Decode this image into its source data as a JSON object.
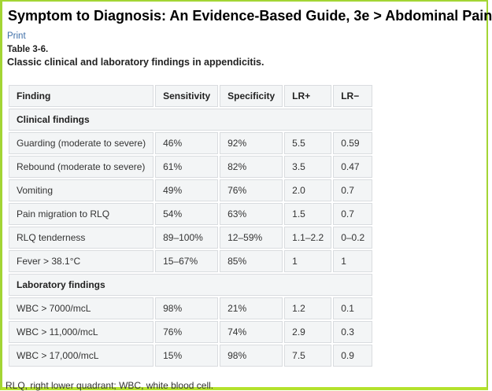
{
  "header": {
    "title": "Symptom to Diagnosis: An Evidence-Based Guide, 3e > Abdominal Pain",
    "print_label": "Print"
  },
  "table": {
    "label": "Table 3-6.",
    "caption": "Classic clinical and laboratory findings in appendicitis.",
    "footnote": "RLQ, right lower quadrant; WBC, white blood cell.",
    "headers": [
      "Finding",
      "Sensitivity",
      "Specificity",
      "LR+",
      "LR−"
    ],
    "sections": [
      {
        "label": "Clinical findings",
        "rows": [
          [
            "Guarding (moderate to severe)",
            "46%",
            "92%",
            "5.5",
            "0.59"
          ],
          [
            "Rebound (moderate to severe)",
            "61%",
            "82%",
            "3.5",
            "0.47"
          ],
          [
            "Vomiting",
            "49%",
            "76%",
            "2.0",
            "0.7"
          ],
          [
            "Pain migration to RLQ",
            "54%",
            "63%",
            "1.5",
            "0.7"
          ],
          [
            "RLQ tenderness",
            "89–100%",
            "12–59%",
            "1.1–2.2",
            "0–0.2"
          ],
          [
            "Fever > 38.1°C",
            "15–67%",
            "85%",
            "1",
            "1"
          ]
        ]
      },
      {
        "label": "Laboratory findings",
        "rows": [
          [
            "WBC > 7000/mcL",
            "98%",
            "21%",
            "1.2",
            "0.1"
          ],
          [
            "WBC > 11,000/mcL",
            "76%",
            "74%",
            "2.9",
            "0.3"
          ],
          [
            "WBC > 17,000/mcL",
            "15%",
            "98%",
            "7.5",
            "0.9"
          ]
        ]
      }
    ]
  },
  "colors": {
    "page_border_green": "#a3d534",
    "page_border_green_bottom": "#b4e22c",
    "link_blue": "#3f6fa8",
    "cell_background": "#f3f5f6",
    "cell_border": "#d9dcdf",
    "text_dark": "#333333"
  }
}
